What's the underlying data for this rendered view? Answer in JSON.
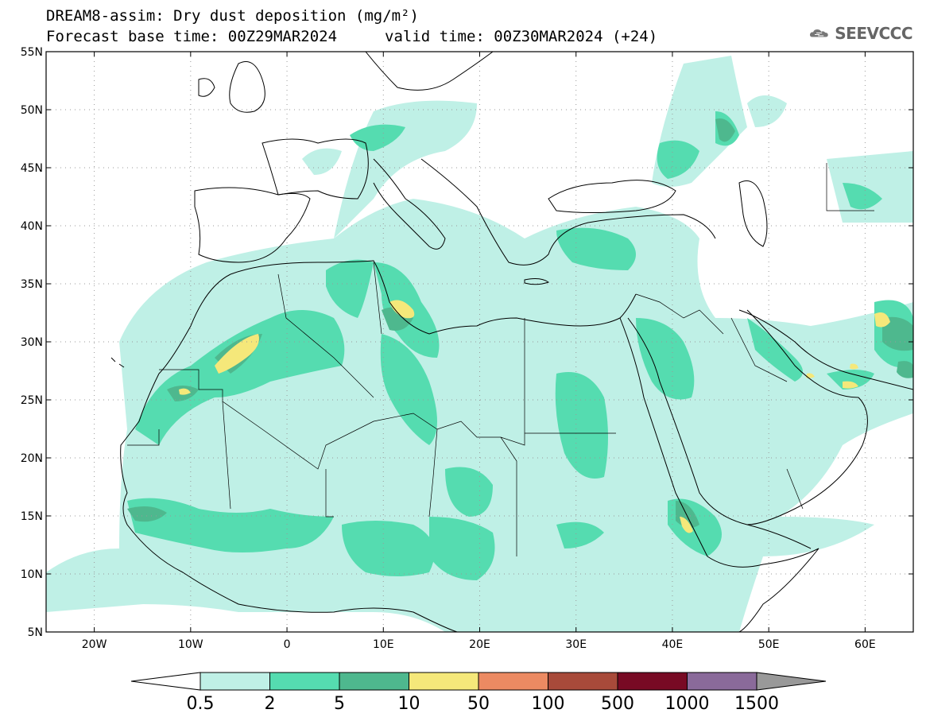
{
  "header": {
    "title": "DREAM8-assim: Dry dust deposition (mg/m²)",
    "base_time": "Forecast base time: 00Z29MAR2024",
    "valid_time": "valid time: 00Z30MAR2024 (+24)"
  },
  "logo": {
    "text": "SEEVCCC",
    "icon": "cloud-logo-icon"
  },
  "axes": {
    "lon_labels": [
      "20W",
      "10W",
      "0",
      "10E",
      "20E",
      "30E",
      "40E",
      "50E",
      "60E"
    ],
    "lat_labels": [
      "55N",
      "50N",
      "45N",
      "40N",
      "35N",
      "30N",
      "25N",
      "20N",
      "15N",
      "10N",
      "5N"
    ],
    "lon_range": [
      -25,
      65
    ],
    "lat_range": [
      5,
      55
    ]
  },
  "colorbar": {
    "levels": [
      "0.5",
      "2",
      "5",
      "10",
      "50",
      "100",
      "500",
      "1000",
      "1500"
    ],
    "colors": [
      "#bff0e6",
      "#55dcb0",
      "#4eb88e",
      "#f5e87a",
      "#ec8a62",
      "#a84a3a",
      "#780a24",
      "#8a6a9a",
      "#999999"
    ],
    "left_tri_color": "#ffffff"
  }
}
